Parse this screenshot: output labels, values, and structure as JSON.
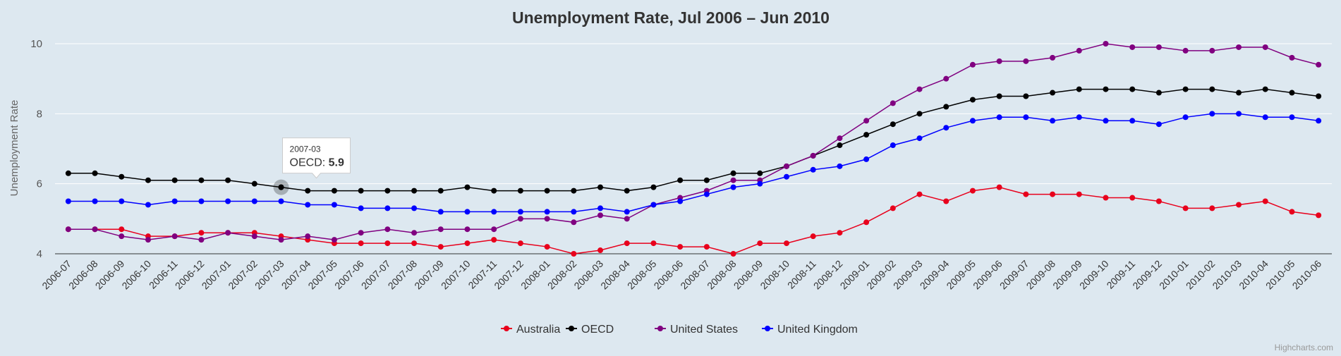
{
  "chart_data": {
    "type": "line",
    "title": "Unemployment Rate, Jul 2006 – Jun 2010",
    "ylabel": "Unemployment Rate",
    "xlabel": "",
    "ylim": [
      4,
      10
    ],
    "y_ticks": [
      4,
      6,
      8,
      10
    ],
    "grid": true,
    "legend_position": "bottom",
    "categories": [
      "2006-07",
      "2006-08",
      "2006-09",
      "2006-10",
      "2006-11",
      "2006-12",
      "2007-01",
      "2007-02",
      "2007-03",
      "2007-04",
      "2007-05",
      "2007-06",
      "2007-07",
      "2007-08",
      "2007-09",
      "2007-10",
      "2007-11",
      "2007-12",
      "2008-01",
      "2008-02",
      "2008-03",
      "2008-04",
      "2008-05",
      "2008-06",
      "2008-07",
      "2008-08",
      "2008-09",
      "2008-10",
      "2008-11",
      "2008-12",
      "2009-01",
      "2009-02",
      "2009-03",
      "2009-04",
      "2009-05",
      "2009-06",
      "2009-07",
      "2009-08",
      "2009-09",
      "2009-10",
      "2009-11",
      "2009-12",
      "2010-01",
      "2010-02",
      "2010-03",
      "2010-04",
      "2010-05",
      "2010-06"
    ],
    "series": [
      {
        "name": "Australia",
        "color": "#e8001c",
        "values": [
          4.7,
          4.7,
          4.7,
          4.5,
          4.5,
          4.6,
          4.6,
          4.6,
          4.5,
          4.4,
          4.3,
          4.3,
          4.3,
          4.3,
          4.2,
          4.3,
          4.4,
          4.3,
          4.2,
          4.0,
          4.1,
          4.3,
          4.3,
          4.2,
          4.2,
          4.0,
          4.3,
          4.3,
          4.5,
          4.6,
          4.9,
          5.3,
          5.7,
          5.5,
          5.8,
          5.9,
          5.7,
          5.7,
          5.7,
          5.6,
          5.6,
          5.5,
          5.3,
          5.3,
          5.4,
          5.5,
          5.2,
          5.1
        ]
      },
      {
        "name": "OECD",
        "color": "#000000",
        "values": [
          6.3,
          6.3,
          6.2,
          6.1,
          6.1,
          6.1,
          6.1,
          6.0,
          5.9,
          5.8,
          5.8,
          5.8,
          5.8,
          5.8,
          5.8,
          5.9,
          5.8,
          5.8,
          5.8,
          5.8,
          5.9,
          5.8,
          5.9,
          6.1,
          6.1,
          6.3,
          6.3,
          6.5,
          6.8,
          7.1,
          7.4,
          7.7,
          8.0,
          8.2,
          8.4,
          8.5,
          8.5,
          8.6,
          8.7,
          8.7,
          8.7,
          8.6,
          8.7,
          8.7,
          8.6,
          8.7,
          8.6,
          8.5
        ]
      },
      {
        "name": "United States",
        "color": "#800080",
        "values": [
          4.7,
          4.7,
          4.5,
          4.4,
          4.5,
          4.4,
          4.6,
          4.5,
          4.4,
          4.5,
          4.4,
          4.6,
          4.7,
          4.6,
          4.7,
          4.7,
          4.7,
          5.0,
          5.0,
          4.9,
          5.1,
          5.0,
          5.4,
          5.6,
          5.8,
          6.1,
          6.1,
          6.5,
          6.8,
          7.3,
          7.8,
          8.3,
          8.7,
          9.0,
          9.4,
          9.5,
          9.5,
          9.6,
          9.8,
          10.0,
          9.9,
          9.9,
          9.8,
          9.8,
          9.9,
          9.9,
          9.6,
          9.4
        ]
      },
      {
        "name": "United Kingdom",
        "color": "#0000ff",
        "values": [
          5.5,
          5.5,
          5.5,
          5.4,
          5.5,
          5.5,
          5.5,
          5.5,
          5.5,
          5.4,
          5.4,
          5.3,
          5.3,
          5.3,
          5.2,
          5.2,
          5.2,
          5.2,
          5.2,
          5.2,
          5.3,
          5.2,
          5.4,
          5.5,
          5.7,
          5.9,
          6.0,
          6.2,
          6.4,
          6.5,
          6.7,
          7.1,
          7.3,
          7.6,
          7.8,
          7.9,
          7.9,
          7.8,
          7.9,
          7.8,
          7.8,
          7.7,
          7.9,
          8.0,
          8.0,
          7.9,
          7.9,
          7.8
        ]
      }
    ],
    "tooltip": {
      "category": "2007-03",
      "series": "OECD",
      "value": "5.9",
      "label_prefix": "OECD: "
    }
  },
  "credits": "Highcharts.com"
}
